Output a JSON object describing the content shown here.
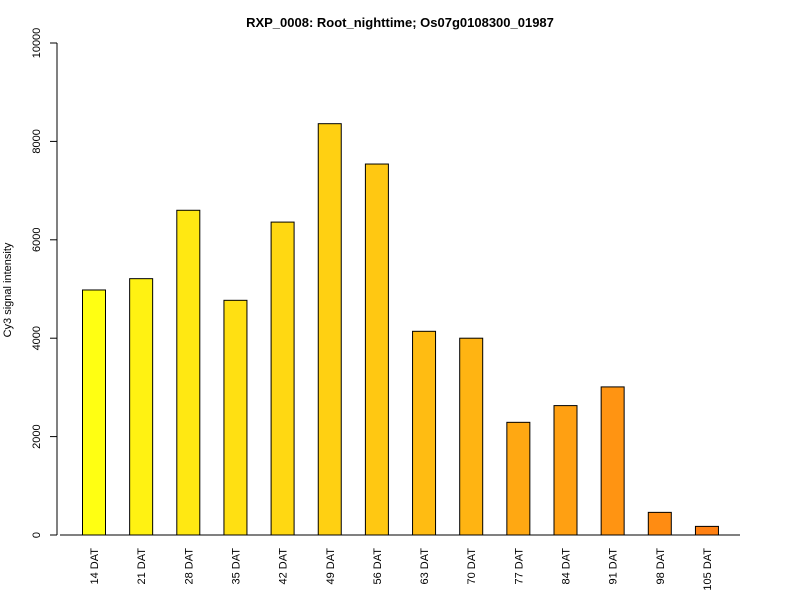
{
  "chart_data": {
    "type": "bar",
    "title": "RXP_0008: Root_nighttime; Os07g0108300_01987",
    "xlabel": "",
    "ylabel": "Cy3 signal intensity",
    "ylim": [
      0,
      10000
    ],
    "yticks": [
      0,
      2000,
      4000,
      6000,
      8000,
      10000
    ],
    "grid": false,
    "categories": [
      "14 DAT",
      "21 DAT",
      "28 DAT",
      "35 DAT",
      "42 DAT",
      "49 DAT",
      "56 DAT",
      "63 DAT",
      "70 DAT",
      "77 DAT",
      "84 DAT",
      "91 DAT",
      "98 DAT",
      "105 DAT"
    ],
    "values": [
      4980,
      5210,
      6600,
      4770,
      6360,
      8360,
      7540,
      4140,
      4000,
      2290,
      2630,
      3010,
      460,
      175
    ],
    "colors": [
      "#FFFF12",
      "#FFF212",
      "#FFE812",
      "#FFE012",
      "#FFD812",
      "#FFD012",
      "#FFC812",
      "#FFBC12",
      "#FFB412",
      "#FFA812",
      "#FFA012",
      "#FF9412",
      "#FF8C12",
      "#FF8012"
    ],
    "bar_edge_color": "#000000"
  }
}
